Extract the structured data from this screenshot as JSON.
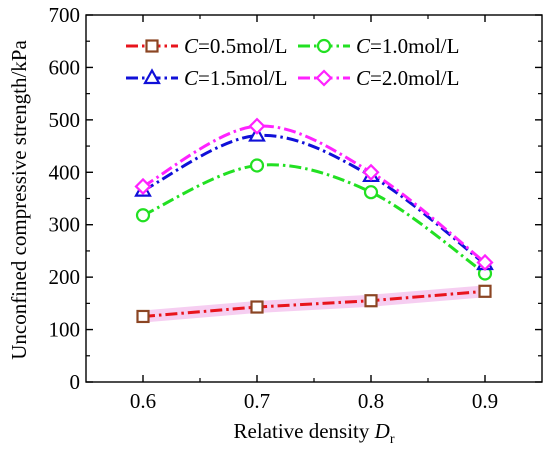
{
  "chart_data": {
    "type": "line",
    "xlabel": "Relative density ",
    "xlabel_symbol": "D",
    "xlabel_subscript": "r",
    "ylabel": "Unconfined compressive strength/kPa",
    "xlim": [
      0.55,
      0.95
    ],
    "ylim": [
      0,
      700
    ],
    "xticks": [
      "0.6",
      "0.7",
      "0.8",
      "0.9"
    ],
    "yticks": [
      "0",
      "100",
      "200",
      "300",
      "400",
      "500",
      "600",
      "700"
    ],
    "x": [
      0.6,
      0.7,
      0.8,
      0.9
    ],
    "grid": false,
    "legend_position": "top",
    "series": [
      {
        "name_var": "C",
        "name_rest": "=0.5mol/L",
        "marker": "square",
        "line_color": "#e8141c",
        "marker_color": "#8b4523",
        "band_color": "#f5c6ee",
        "values": [
          125,
          143,
          155,
          173
        ]
      },
      {
        "name_var": "C",
        "name_rest": "=1.0mol/L",
        "marker": "circle",
        "line_color": "#22e022",
        "marker_color": "#22e022",
        "values": [
          318,
          413,
          362,
          207
        ]
      },
      {
        "name_var": "C",
        "name_rest": "=1.5mol/L",
        "marker": "triangle",
        "line_color": "#1010d8",
        "marker_color": "#1010d8",
        "values": [
          365,
          470,
          393,
          225
        ]
      },
      {
        "name_var": "C",
        "name_rest": "=2.0mol/L",
        "marker": "diamond",
        "line_color": "#ff22ff",
        "marker_color": "#ff22ff",
        "values": [
          373,
          488,
          400,
          228
        ]
      }
    ]
  }
}
